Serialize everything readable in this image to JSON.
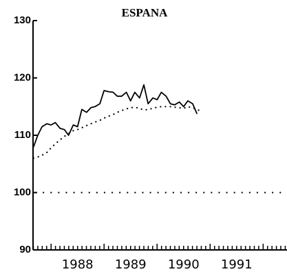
{
  "chart_data": {
    "type": "line",
    "title": "ESPANA",
    "xlim": [
      1987.66,
      1992.45
    ],
    "xticks": [
      {
        "value": 1988.5,
        "label": "1988"
      },
      {
        "value": 1989.5,
        "label": "1989"
      },
      {
        "value": 1990.5,
        "label": "1990"
      },
      {
        "value": 1991.5,
        "label": "1991"
      }
    ],
    "ylim": [
      90,
      130
    ],
    "yticks": [
      90,
      100,
      110,
      120,
      130
    ],
    "reference_line": 100,
    "series": [
      {
        "style": "solid",
        "color": "#000000",
        "x": [
          1987.67,
          1987.75,
          1987.83,
          1987.92,
          1988.0,
          1988.08,
          1988.17,
          1988.25,
          1988.33,
          1988.42,
          1988.5,
          1988.58,
          1988.67,
          1988.75,
          1988.83,
          1988.92,
          1989.0,
          1989.08,
          1989.17,
          1989.25,
          1989.33,
          1989.42,
          1989.5,
          1989.58,
          1989.67,
          1989.75,
          1989.83,
          1989.92,
          1990.0,
          1990.08,
          1990.17,
          1990.25,
          1990.33,
          1990.42,
          1990.5,
          1990.58,
          1990.67,
          1990.75
        ],
        "values": [
          108,
          110,
          111.5,
          112,
          111.8,
          112.2,
          111.2,
          111,
          110,
          111.8,
          111.5,
          114.5,
          114,
          114.8,
          115,
          115.5,
          117.8,
          117.6,
          117.5,
          116.8,
          116.8,
          117.5,
          116,
          117.5,
          116.5,
          118.8,
          115.5,
          116.5,
          116.2,
          117.5,
          116.8,
          115.5,
          115.3,
          115.8,
          115,
          116,
          115.5,
          113.8
        ]
      },
      {
        "style": "dotted",
        "color": "#000000",
        "x": [
          1987.67,
          1987.75,
          1987.83,
          1987.92,
          1988.0,
          1988.08,
          1988.17,
          1988.25,
          1988.33,
          1988.42,
          1988.5,
          1988.58,
          1988.67,
          1988.75,
          1988.83,
          1988.92,
          1989.0,
          1989.08,
          1989.17,
          1989.25,
          1989.33,
          1989.42,
          1989.5,
          1989.58,
          1989.67,
          1989.75,
          1989.83,
          1989.92,
          1990.0,
          1990.08,
          1990.17,
          1990.25,
          1990.33,
          1990.42,
          1990.5,
          1990.58,
          1990.67,
          1990.75,
          1990.83
        ],
        "values": [
          106,
          106.2,
          106.5,
          107,
          107.8,
          108.5,
          109.2,
          109.8,
          110.3,
          110.8,
          111,
          111.3,
          111.7,
          112,
          112.3,
          112.6,
          113,
          113.3,
          113.6,
          114,
          114.3,
          114.6,
          114.8,
          114.9,
          114.7,
          114.4,
          114.5,
          114.7,
          114.9,
          115,
          115,
          115,
          114.9,
          114.8,
          114.7,
          115,
          114.8,
          114.5,
          114.2
        ]
      }
    ]
  }
}
